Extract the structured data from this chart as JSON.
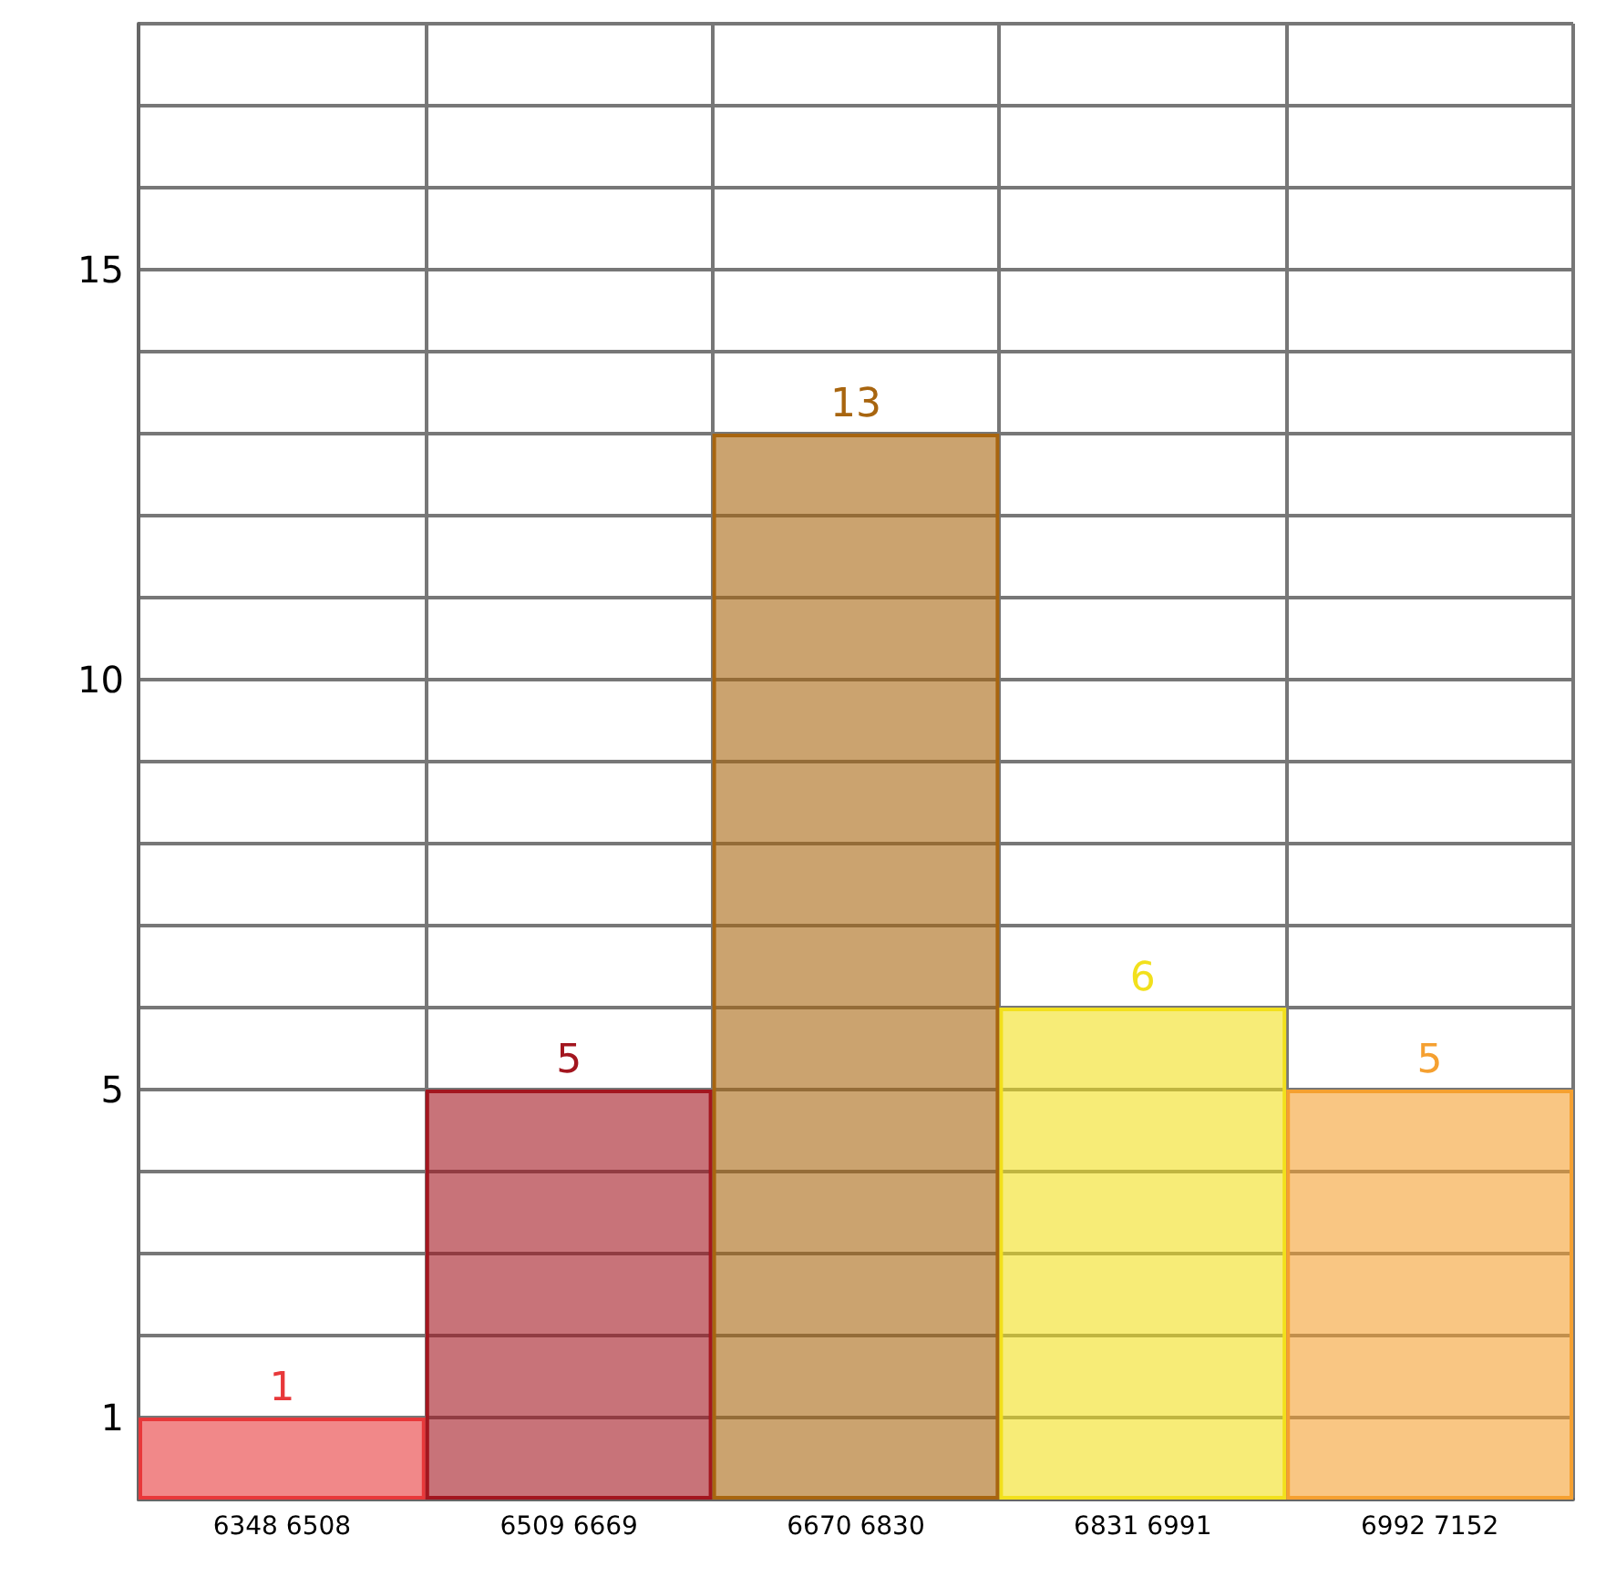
{
  "chart_data": {
    "type": "bar",
    "categories": [
      "6348 6508",
      "6509 6669",
      "6670 6830",
      "6831 6991",
      "6992 7152"
    ],
    "values": [
      1,
      5,
      13,
      6,
      5
    ],
    "colors": [
      "#e8383a",
      "#a3161f",
      "#a8650f",
      "#f2e01c",
      "#f5a030"
    ],
    "ylim": [
      0,
      18
    ],
    "yticks": [
      1,
      5,
      10,
      15
    ],
    "data_labels": true,
    "grid": true
  }
}
